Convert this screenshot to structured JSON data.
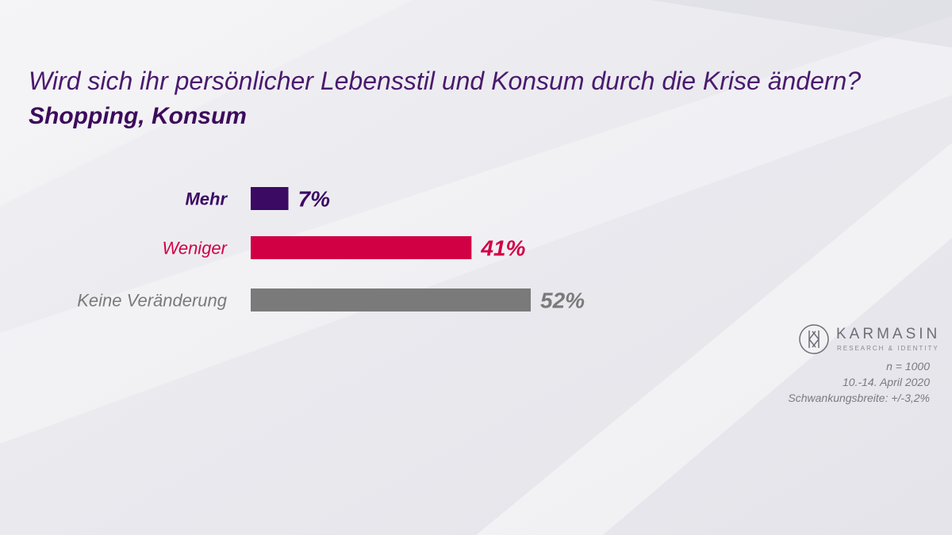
{
  "title": "Wird sich ihr persönlicher Lebensstil und Konsum durch die Krise ändern?",
  "subtitle": "Shopping, Konsum",
  "chart_data": {
    "type": "bar",
    "orientation": "horizontal",
    "categories": [
      "Mehr",
      "Weniger",
      "Keine Veränderung"
    ],
    "values": [
      7,
      41,
      52
    ],
    "value_labels": [
      "7%",
      "41%",
      "52%"
    ],
    "colors": [
      "#3b0a63",
      "#d10045",
      "#7a7a7a"
    ],
    "unit": "%",
    "xlim": [
      0,
      52
    ],
    "grid": false,
    "legend": "none"
  },
  "logo": {
    "name": "KARMASIN",
    "tagline": "RESEARCH & IDENTITY",
    "icon": "karmasin-logo-icon"
  },
  "footnotes": {
    "sample": "n = 1000",
    "period": "10.-14. April 2020",
    "margin": "Schwankungsbreite: +/-3,2%"
  }
}
